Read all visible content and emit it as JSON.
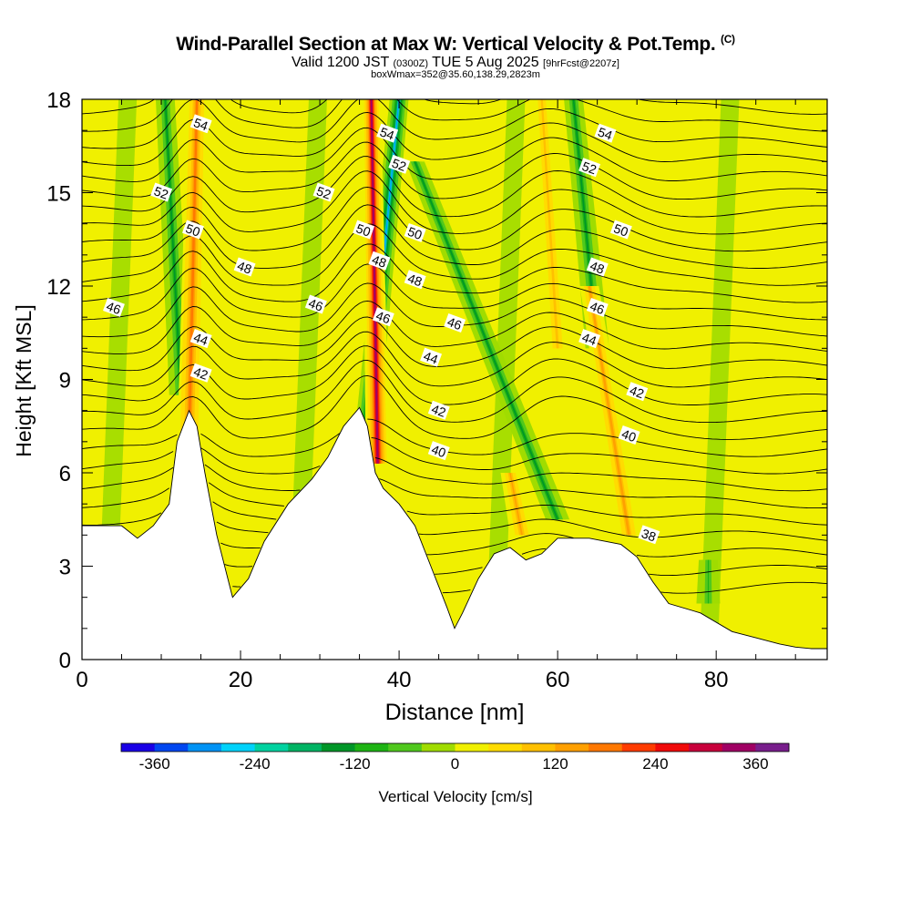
{
  "title": {
    "main": "Wind-Parallel Section at Max W: Vertical Velocity & Pot.Temp.",
    "copyright": "(C)",
    "valid_prefix": "Valid 1200 JST",
    "utc": "(0300Z)",
    "valid_date": "TUE 5 Aug 2025",
    "forecast": "[9hrFcst@2207z]",
    "boxwmax": "boxWmax=352@35.60,138.29,2823m"
  },
  "chart_data": {
    "type": "heatmap",
    "xlabel": "Distance [nm]",
    "ylabel": "Height [Kft MSL]",
    "xlim": [
      0,
      94
    ],
    "ylim": [
      0,
      18
    ],
    "x_ticks": [
      "0",
      "20",
      "40",
      "60",
      "80"
    ],
    "y_ticks": [
      "0",
      "3",
      "6",
      "9",
      "12",
      "15",
      "18"
    ],
    "colorbar": {
      "label": "Vertical Velocity [cm/s]",
      "tick_labels": [
        "-360",
        "-240",
        "-120",
        "0",
        "120",
        "240",
        "360"
      ],
      "colors": [
        "#1a00e6",
        "#0047f0",
        "#0093f5",
        "#00d2fa",
        "#00d2a0",
        "#00b464",
        "#009628",
        "#1eb414",
        "#50c81e",
        "#a0dc00",
        "#f0f000",
        "#ffdc00",
        "#ffc000",
        "#ffa000",
        "#ff7800",
        "#ff3c00",
        "#f00a0a",
        "#c8003c",
        "#a00064",
        "#781e8c"
      ]
    },
    "terrain_kft": [
      [
        0,
        4.3
      ],
      [
        5,
        4.3
      ],
      [
        7,
        3.9
      ],
      [
        9,
        4.3
      ],
      [
        11,
        5
      ],
      [
        12,
        7
      ],
      [
        13.5,
        8
      ],
      [
        14.5,
        7.5
      ],
      [
        15.5,
        6
      ],
      [
        17,
        4
      ],
      [
        19,
        2
      ],
      [
        21,
        2.6
      ],
      [
        23,
        3.8
      ],
      [
        26,
        5
      ],
      [
        29,
        5.8
      ],
      [
        31,
        6.5
      ],
      [
        33,
        7.5
      ],
      [
        35,
        8.1
      ],
      [
        36,
        7.5
      ],
      [
        37,
        6
      ],
      [
        38,
        5.5
      ],
      [
        40,
        5
      ],
      [
        42,
        4.3
      ],
      [
        44,
        3
      ],
      [
        46,
        1.7
      ],
      [
        47,
        1
      ],
      [
        48,
        1.5
      ],
      [
        50,
        2.6
      ],
      [
        52,
        3.4
      ],
      [
        54,
        3.6
      ],
      [
        56,
        3.2
      ],
      [
        58,
        3.4
      ],
      [
        60,
        3.9
      ],
      [
        64,
        3.9
      ],
      [
        68,
        3.7
      ],
      [
        70,
        3.3
      ],
      [
        72,
        2.5
      ],
      [
        74,
        1.8
      ],
      [
        78,
        1.5
      ],
      [
        82,
        0.9
      ],
      [
        85,
        0.7
      ],
      [
        88,
        0.5
      ],
      [
        90,
        0.4
      ],
      [
        92,
        0.35
      ],
      [
        94,
        0.35
      ]
    ],
    "updrafts": [
      {
        "x_bottom": 13.5,
        "x_top": 14.5,
        "y_bottom": 7,
        "y_top": 18,
        "w_cms": 180
      },
      {
        "x_bottom": 37.3,
        "x_top": 36.5,
        "y_bottom": 6.3,
        "y_top": 18,
        "w_cms": 352
      },
      {
        "x_bottom": 69,
        "x_top": 64,
        "y_bottom": 4,
        "y_top": 12,
        "w_cms": 140
      },
      {
        "x_bottom": 55.5,
        "x_top": 54,
        "y_bottom": 4,
        "y_top": 6,
        "w_cms": 120
      },
      {
        "x_bottom": 60,
        "x_top": 58,
        "y_bottom": 10,
        "y_top": 18,
        "w_cms": 100
      }
    ],
    "downdrafts": [
      {
        "x_bottom": 12.5,
        "x_top": 10.5,
        "y_bottom": 8.5,
        "y_top": 18,
        "w_cms": -140
      },
      {
        "x_bottom": 36,
        "x_top": 40,
        "y_bottom": 7.5,
        "y_top": 18,
        "w_cms": -300
      },
      {
        "x_bottom": 60,
        "x_top": 42,
        "y_bottom": 4.5,
        "y_top": 16,
        "w_cms": -150
      },
      {
        "x_bottom": 65,
        "x_top": 62,
        "y_bottom": 10,
        "y_top": 18,
        "w_cms": -160
      },
      {
        "x_bottom": 79,
        "x_top": 79,
        "y_bottom": 1.8,
        "y_top": 3.2,
        "w_cms": -90
      }
    ],
    "isentropes": [
      {
        "label": "38",
        "base_kft": 4.0,
        "label_x": 71.5
      },
      {
        "label": "40",
        "base_kft": 6.7,
        "label_x": 45
      },
      {
        "label": "40",
        "base_kft": 7.2,
        "label_x": 69
      },
      {
        "label": "42",
        "base_kft": 8.0,
        "label_x": 45
      },
      {
        "label": "42",
        "base_kft": 9.2,
        "label_x": 15
      },
      {
        "label": "42",
        "base_kft": 8.6,
        "label_x": 70
      },
      {
        "label": "44",
        "base_kft": 9.7,
        "label_x": 44
      },
      {
        "label": "44",
        "base_kft": 10.3,
        "label_x": 15
      },
      {
        "label": "44",
        "base_kft": 10.3,
        "label_x": 64
      },
      {
        "label": "46",
        "base_kft": 11.3,
        "label_x": 4
      },
      {
        "label": "46",
        "base_kft": 11.4,
        "label_x": 29.5
      },
      {
        "label": "46",
        "base_kft": 11.0,
        "label_x": 38
      },
      {
        "label": "46",
        "base_kft": 10.8,
        "label_x": 47
      },
      {
        "label": "46",
        "base_kft": 11.3,
        "label_x": 65
      },
      {
        "label": "48",
        "base_kft": 12.6,
        "label_x": 20.5
      },
      {
        "label": "48",
        "base_kft": 12.8,
        "label_x": 37.5
      },
      {
        "label": "48",
        "base_kft": 12.2,
        "label_x": 42
      },
      {
        "label": "48",
        "base_kft": 12.6,
        "label_x": 65
      },
      {
        "label": "50",
        "base_kft": 13.8,
        "label_x": 14
      },
      {
        "label": "50",
        "base_kft": 13.8,
        "label_x": 35.5
      },
      {
        "label": "50",
        "base_kft": 13.7,
        "label_x": 42
      },
      {
        "label": "50",
        "base_kft": 13.8,
        "label_x": 68
      },
      {
        "label": "52",
        "base_kft": 15.0,
        "label_x": 10
      },
      {
        "label": "52",
        "base_kft": 15.0,
        "label_x": 30.5
      },
      {
        "label": "52",
        "base_kft": 15.9,
        "label_x": 40
      },
      {
        "label": "52",
        "base_kft": 15.8,
        "label_x": 64
      },
      {
        "label": "54",
        "base_kft": 17.2,
        "label_x": 15
      },
      {
        "label": "54",
        "base_kft": 16.9,
        "label_x": 38.5
      },
      {
        "label": "54",
        "base_kft": 16.9,
        "label_x": 66
      }
    ]
  }
}
